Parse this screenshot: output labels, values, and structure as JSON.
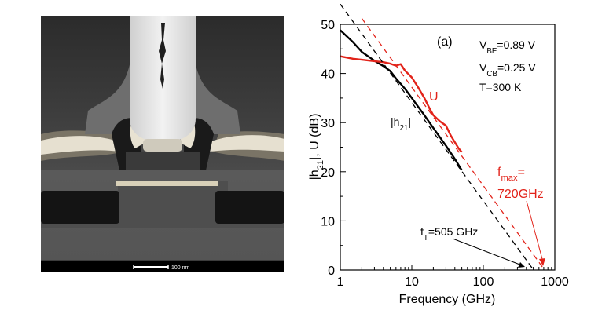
{
  "micrograph": {
    "scale_bar_label": "100 nm"
  },
  "chart_data": {
    "type": "line",
    "panel_label": "(a)",
    "xlabel": "Frequency (GHz)",
    "ylabel": "|h21|, U (dB)",
    "xscale": "log",
    "xlim": [
      1,
      1000
    ],
    "ylim": [
      0,
      50
    ],
    "xticks": [
      1,
      10,
      100,
      1000
    ],
    "xtick_labels": [
      "1",
      "10",
      "100",
      "1000"
    ],
    "yticks": [
      0,
      10,
      20,
      30,
      40,
      50
    ],
    "ytick_labels": [
      "0",
      "10",
      "20",
      "30",
      "40",
      "50"
    ],
    "grid": false,
    "conditions": [
      "VBE=0.89 V",
      "VCB=0.25 V",
      "T=300 K"
    ],
    "series": [
      {
        "name": "|h21|",
        "color": "#000000",
        "style": "solid",
        "x": [
          1,
          1.5,
          2,
          3,
          4,
          5,
          6,
          8,
          10,
          15,
          20,
          30,
          40,
          50
        ],
        "y": [
          48.8,
          46.4,
          44.4,
          42.6,
          41.5,
          40.5,
          39.0,
          36.9,
          35.0,
          31.5,
          28.9,
          25.3,
          22.6,
          20.3
        ]
      },
      {
        "name": "U",
        "color": "#e2231a",
        "style": "solid",
        "x": [
          1,
          1.5,
          2,
          3,
          4,
          5,
          6,
          7,
          8,
          10,
          12,
          15,
          18,
          20,
          25,
          30,
          35,
          40,
          45,
          50
        ],
        "y": [
          43.5,
          43.0,
          42.8,
          42.5,
          42.3,
          42.0,
          41.6,
          41.9,
          40.6,
          39.2,
          37.4,
          35.0,
          32.7,
          31.5,
          30.2,
          29.4,
          27.4,
          26.0,
          24.8,
          24.0
        ]
      },
      {
        "name": "|h21| extrapolation",
        "color": "#000000",
        "style": "dashed",
        "x": [
          1,
          505
        ],
        "y": [
          54.1,
          0
        ]
      },
      {
        "name": "U extrapolation",
        "color": "#e2231a",
        "style": "dashed",
        "x": [
          2,
          720
        ],
        "y": [
          51.2,
          0
        ]
      }
    ],
    "annotations": [
      {
        "id": "ft",
        "text": "fT=505 GHz",
        "value_ghz": 505
      },
      {
        "id": "fmax",
        "text": "fmax= 720GHz",
        "value_ghz": 720
      }
    ]
  }
}
